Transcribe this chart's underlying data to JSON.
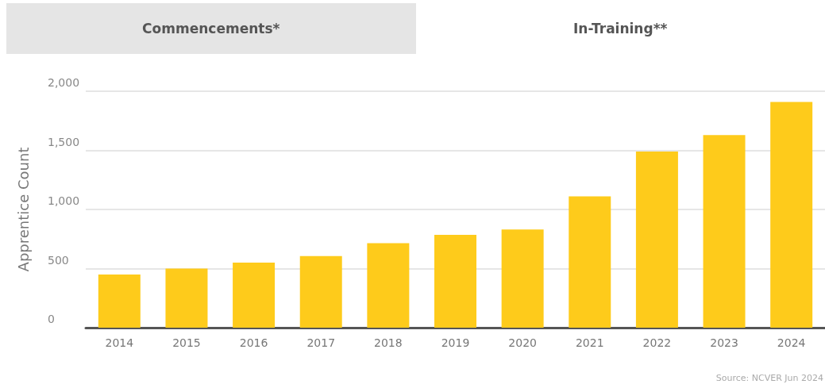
{
  "chart_data": {
    "type": "bar",
    "ylabel": "Apprentice Count",
    "categories": [
      "2014",
      "2015",
      "2016",
      "2017",
      "2018",
      "2019",
      "2020",
      "2021",
      "2022",
      "2023",
      "2024"
    ],
    "values": [
      450,
      500,
      550,
      605,
      715,
      785,
      830,
      1110,
      1490,
      1630,
      1910
    ],
    "color": "#fecb1b",
    "ylim": [
      0,
      2000
    ],
    "yticks": [
      {
        "value": 0,
        "label": "0"
      },
      {
        "value": 500,
        "label": "500"
      },
      {
        "value": 1000,
        "label": "1,000"
      },
      {
        "value": 1500,
        "label": "1,500"
      },
      {
        "value": 2000,
        "label": "2,000"
      }
    ],
    "grid": "y",
    "annotations": [
      "Commencements*",
      "In-Training**",
      "Source: NCVER Jun 2024"
    ]
  }
}
